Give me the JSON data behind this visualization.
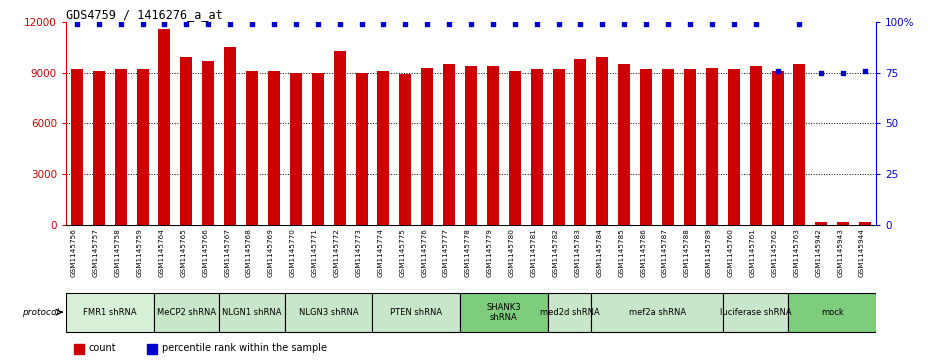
{
  "title": "GDS4759 / 1416276_a_at",
  "samples": [
    "GSM1145756",
    "GSM1145757",
    "GSM1145758",
    "GSM1145759",
    "GSM1145764",
    "GSM1145765",
    "GSM1145766",
    "GSM1145767",
    "GSM1145768",
    "GSM1145769",
    "GSM1145770",
    "GSM1145771",
    "GSM1145772",
    "GSM1145773",
    "GSM1145774",
    "GSM1145775",
    "GSM1145776",
    "GSM1145777",
    "GSM1145778",
    "GSM1145779",
    "GSM1145780",
    "GSM1145781",
    "GSM1145782",
    "GSM1145783",
    "GSM1145784",
    "GSM1145785",
    "GSM1145786",
    "GSM1145787",
    "GSM1145788",
    "GSM1145789",
    "GSM1145760",
    "GSM1145761",
    "GSM1145762",
    "GSM1145763",
    "GSM1145942",
    "GSM1145943",
    "GSM1145944"
  ],
  "bar_values": [
    9200,
    9100,
    9200,
    9200,
    11600,
    9900,
    9700,
    10500,
    9100,
    9100,
    9000,
    9000,
    10300,
    9000,
    9100,
    8900,
    9300,
    9500,
    9400,
    9400,
    9100,
    9200,
    9200,
    9800,
    9900,
    9500,
    9200,
    9200,
    9200,
    9300,
    9200,
    9400,
    9100,
    9500,
    200,
    200,
    200
  ],
  "percentile_values": [
    99,
    99,
    99,
    99,
    99,
    99,
    99,
    99,
    99,
    99,
    99,
    99,
    99,
    99,
    99,
    99,
    99,
    99,
    99,
    99,
    99,
    99,
    99,
    99,
    99,
    99,
    99,
    99,
    99,
    99,
    99,
    99,
    76,
    99,
    75,
    75,
    76
  ],
  "groups": [
    {
      "label": "FMR1 shRNA",
      "start": 0,
      "end": 4,
      "color": "#d8f0d8"
    },
    {
      "label": "MeCP2 shRNA",
      "start": 4,
      "end": 7,
      "color": "#c8e6c9"
    },
    {
      "label": "NLGN1 shRNA",
      "start": 7,
      "end": 10,
      "color": "#c8e6c9"
    },
    {
      "label": "NLGN3 shRNA",
      "start": 10,
      "end": 14,
      "color": "#c8e6c9"
    },
    {
      "label": "PTEN shRNA",
      "start": 14,
      "end": 18,
      "color": "#c8e6c9"
    },
    {
      "label": "SHANK3\nshRNA",
      "start": 18,
      "end": 22,
      "color": "#7dcd7d"
    },
    {
      "label": "med2d shRNA",
      "start": 22,
      "end": 24,
      "color": "#c8e6c9"
    },
    {
      "label": "mef2a shRNA",
      "start": 24,
      "end": 30,
      "color": "#c8e6c9"
    },
    {
      "label": "luciferase shRNA",
      "start": 30,
      "end": 33,
      "color": "#c8e6c9"
    },
    {
      "label": "mock",
      "start": 33,
      "end": 37,
      "color": "#7dcd7d"
    }
  ],
  "bar_color": "#cc0000",
  "dot_color": "#0000cc",
  "ylim_left": [
    0,
    12000
  ],
  "ylim_right": [
    0,
    100
  ],
  "yticks_left": [
    0,
    3000,
    6000,
    9000,
    12000
  ],
  "yticks_right": [
    0,
    25,
    50,
    75,
    100
  ],
  "plot_bg": "#ffffff",
  "label_bg": "#d8d8d8",
  "legend_count_color": "#cc0000",
  "legend_pct_color": "#0000cc"
}
